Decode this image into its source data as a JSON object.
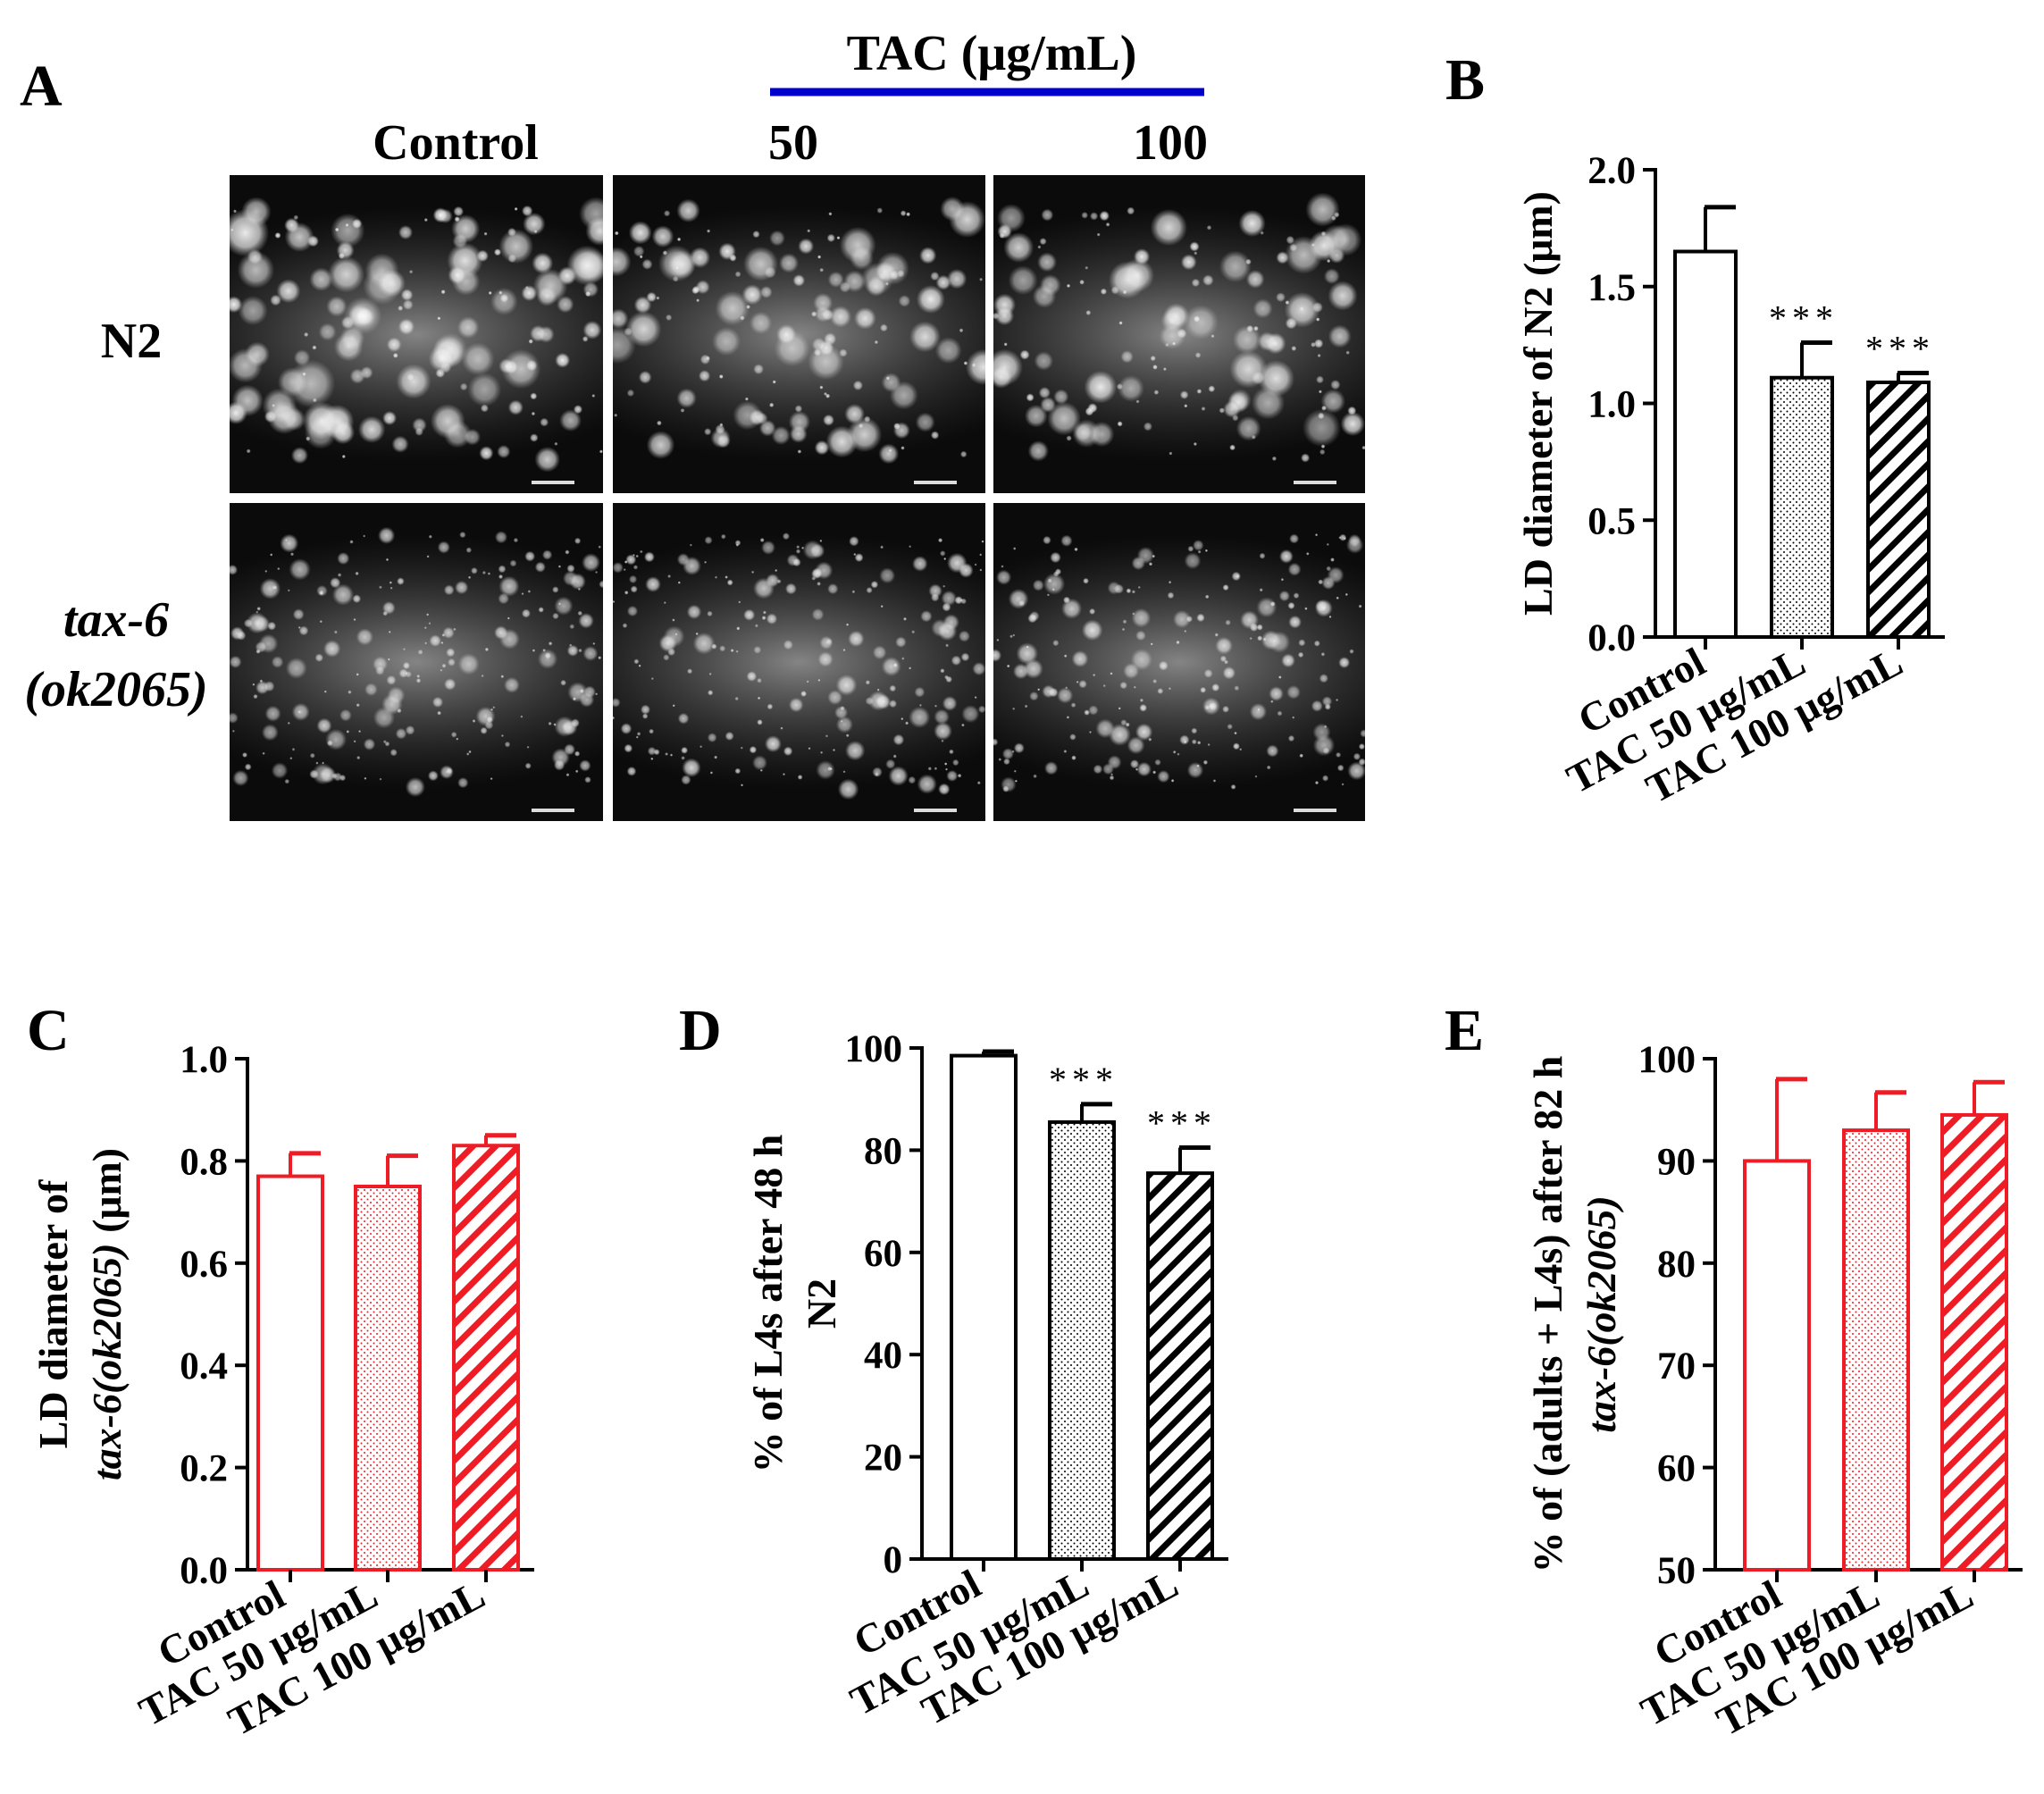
{
  "panels": {
    "A": "A",
    "B": "B",
    "C": "C",
    "D": "D",
    "E": "E"
  },
  "micrographs": {
    "treatment_label": "TAC (μg/mL)",
    "columns": [
      "Control",
      "50",
      "100"
    ],
    "rows": [
      {
        "lines": [
          "N2"
        ],
        "italic": false
      },
      {
        "lines": [
          "tax-6",
          "(ok2065)"
        ],
        "italic": true
      }
    ],
    "treatment_bar_color": "#0000cc"
  },
  "colors": {
    "black": "#000000",
    "red": "#ee1c24"
  },
  "chart_data": [
    {
      "id": "B",
      "type": "bar",
      "title": "",
      "ylabel_lines": [
        {
          "parts": [
            {
              "text": "LD diameter of N2 (μm)",
              "italic": false
            }
          ]
        }
      ],
      "categories": [
        "Control",
        "TAC 50 μg/mL",
        "TAC 100 μg/mL"
      ],
      "values": [
        1.65,
        1.11,
        1.09
      ],
      "errors": [
        0.19,
        0.15,
        0.04
      ],
      "significance": [
        "",
        "***",
        "***"
      ],
      "fills": [
        "none",
        "dots",
        "hatch"
      ],
      "color": "black",
      "ylim": [
        0,
        2.0
      ],
      "yticks": [
        "0.0",
        "0.5",
        "1.0",
        "1.5",
        "2.0"
      ]
    },
    {
      "id": "C",
      "type": "bar",
      "title": "",
      "ylabel_lines": [
        {
          "parts": [
            {
              "text": "LD diameter of",
              "italic": false
            }
          ]
        },
        {
          "parts": [
            {
              "text": "tax-6(ok2065)",
              "italic": true
            },
            {
              "text": " (μm)",
              "italic": false
            }
          ]
        }
      ],
      "categories": [
        "Control",
        "TAC 50  μg/mL",
        "TAC 100  μg/mL"
      ],
      "values": [
        0.77,
        0.75,
        0.83
      ],
      "errors": [
        0.045,
        0.06,
        0.02
      ],
      "significance": [
        "",
        "",
        ""
      ],
      "fills": [
        "none",
        "dots",
        "hatch"
      ],
      "color": "red",
      "ylim": [
        0,
        1.0
      ],
      "yticks": [
        "0.0",
        "0.2",
        "0.4",
        "0.6",
        "0.8",
        "1.0"
      ]
    },
    {
      "id": "D",
      "type": "bar",
      "title": "",
      "ylabel_lines": [
        {
          "parts": [
            {
              "text": "% of L4s after 48 h",
              "italic": false
            }
          ]
        },
        {
          "parts": [
            {
              "text": "N2",
              "italic": false
            }
          ]
        }
      ],
      "categories": [
        "Control",
        "TAC 50 μg/mL",
        "TAC 100 μg/mL"
      ],
      "values": [
        98.5,
        85.5,
        75.5
      ],
      "errors": [
        0.8,
        3.5,
        5.0
      ],
      "significance": [
        "",
        "***",
        "***"
      ],
      "fills": [
        "none",
        "dots",
        "hatch"
      ],
      "color": "black",
      "ylim": [
        0,
        100
      ],
      "yticks": [
        "0",
        "20",
        "40",
        "60",
        "80",
        "100"
      ]
    },
    {
      "id": "E",
      "type": "bar",
      "title": "",
      "ylabel_lines": [
        {
          "parts": [
            {
              "text": "% of (adults + L4s) after 82 h",
              "italic": false
            }
          ]
        },
        {
          "parts": [
            {
              "text": "tax-6(ok2065)",
              "italic": true
            }
          ]
        }
      ],
      "categories": [
        "Control",
        "TAC 50 μg/mL",
        "TAC 100 μg/mL"
      ],
      "values": [
        90.0,
        93.0,
        94.5
      ],
      "errors": [
        8.0,
        3.7,
        3.2
      ],
      "significance": [
        "",
        "",
        ""
      ],
      "fills": [
        "none",
        "dots",
        "hatch"
      ],
      "color": "red",
      "ylim": [
        50,
        100
      ],
      "yticks": [
        "50",
        "60",
        "70",
        "80",
        "90",
        "100"
      ]
    }
  ]
}
